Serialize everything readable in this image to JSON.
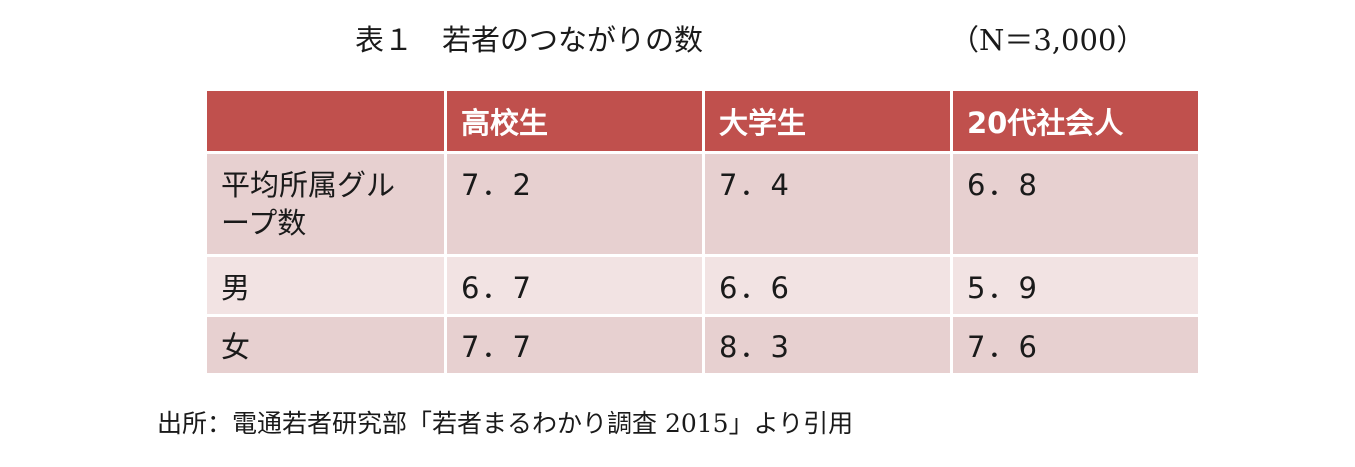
{
  "title": "表１　若者のつながりの数",
  "sample_size": "（N＝3,000）",
  "table": {
    "headers": [
      "",
      "高校生",
      "大学生",
      "20代社会人"
    ],
    "rows": [
      {
        "label": "平均所属グループ数",
        "values": [
          "7．2",
          "7．4",
          "6．8"
        ]
      },
      {
        "label": "男",
        "values": [
          "6．7",
          "6．6",
          "5．9"
        ]
      },
      {
        "label": "女",
        "values": [
          "7．7",
          "8．3",
          "7．6"
        ]
      }
    ]
  },
  "source": "出所：電通若者研究部「若者まるわかり調査 2015」より引用",
  "colors": {
    "header_bg": "#c0504d",
    "row_shade_dark": "#e7d0d0",
    "row_shade_light": "#f2e3e3"
  }
}
